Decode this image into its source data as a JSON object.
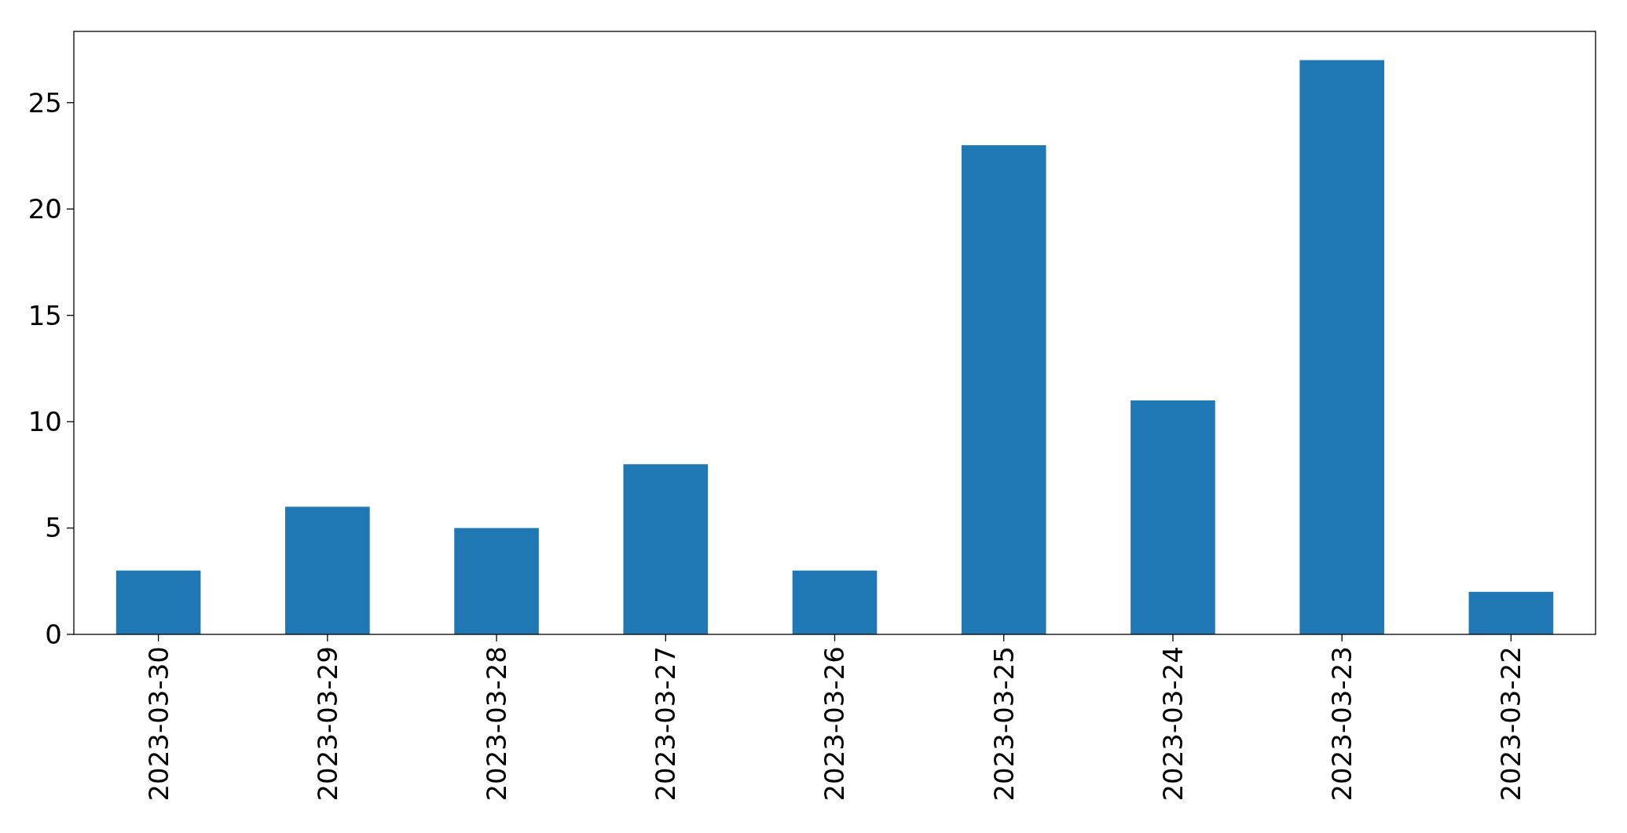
{
  "chart_data": {
    "type": "bar",
    "categories": [
      "2023-03-30",
      "2023-03-29",
      "2023-03-28",
      "2023-03-27",
      "2023-03-26",
      "2023-03-25",
      "2023-03-24",
      "2023-03-23",
      "2023-03-22"
    ],
    "values": [
      3,
      6,
      5,
      8,
      3,
      23,
      11,
      27,
      2
    ],
    "color": "#1f77b4",
    "ylim": [
      0,
      28.35
    ],
    "yticks": [
      0,
      5,
      10,
      15,
      20,
      25
    ]
  }
}
